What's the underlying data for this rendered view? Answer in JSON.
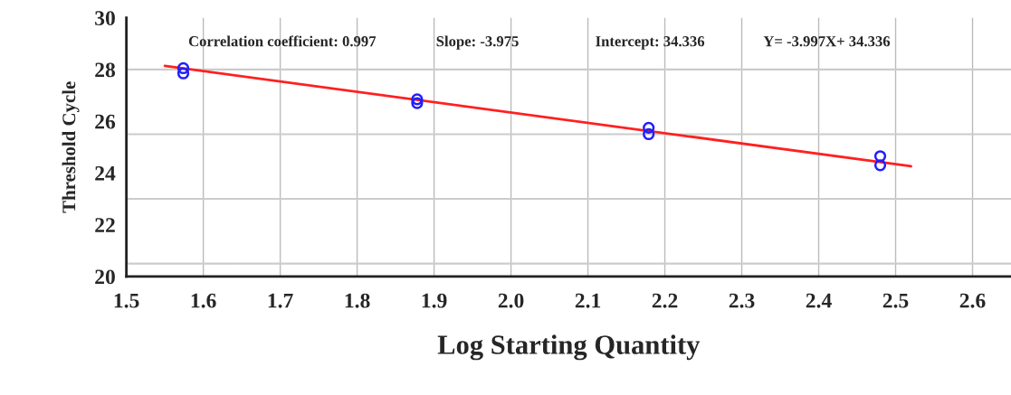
{
  "chart_data": {
    "type": "scatter",
    "xlabel": "Log Starting Quantity",
    "ylabel": "Threshold Cycle",
    "annotations": [
      "Correlation coefficient: 0.997",
      "Slope: -3.975",
      "Intercept: 34.336",
      "Y= -3.997X+ 34.336"
    ],
    "series": [
      {
        "color": "#1f1fff",
        "marker": "circle",
        "x": [
          1.574,
          1.574,
          1.878,
          1.878,
          2.179,
          2.179,
          2.48,
          2.48
        ],
        "values": [
          28.05,
          27.85,
          26.85,
          26.7,
          25.75,
          25.5,
          24.65,
          24.3
        ]
      },
      {
        "type": "line",
        "color": "#ff2020",
        "x": [
          1.55,
          2.52
        ],
        "values": [
          28.14,
          24.26
        ]
      }
    ],
    "xlim": [
      1.5,
      2.65
    ],
    "xticks": [
      1.5,
      1.6,
      1.7,
      1.8,
      1.9,
      {
        "value": 2.0,
        "label": "2.0"
      },
      2.1,
      2.2,
      2.3,
      2.4,
      2.5,
      2.6
    ],
    "ylim": [
      20,
      30
    ],
    "yticks": [
      20,
      22,
      24,
      26,
      28,
      30
    ],
    "grid": "x",
    "ref_lines": [
      {
        "axis": "y",
        "value": 28,
        "color": "#cccccc"
      },
      {
        "axis": "y",
        "value": 25.5,
        "color": "#cccccc"
      },
      {
        "axis": "y",
        "value": 23,
        "color": "#cccccc"
      },
      {
        "axis": "y",
        "value": 20.5,
        "color": "#cccccc"
      }
    ]
  }
}
